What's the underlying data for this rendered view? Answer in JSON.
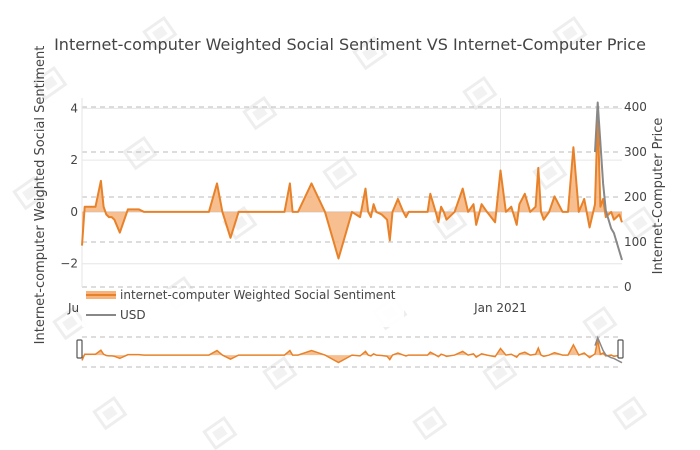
{
  "chart_data": {
    "type": "line",
    "title": "Internet-computer Weighted Social Sentiment VS Internet-Computer Price",
    "ylabel_left": "Internet-computer Weighted Social Sentiment",
    "ylabel_right": "Internet-Computer Price",
    "y_left_ticks": [
      "4",
      "2",
      "0",
      "−2"
    ],
    "y_left_range": [
      -2.9,
      4.4
    ],
    "y_right_ticks": [
      "400",
      "300",
      "200",
      "100",
      "0"
    ],
    "y_right_range": [
      0,
      420
    ],
    "x_ticks": [
      "Ju",
      "Jan 2021"
    ],
    "x_range": [
      0,
      400
    ],
    "x_tick_positions": [
      0,
      310
    ],
    "grid": true,
    "legend_position": "bottom-left",
    "colors": {
      "sentiment": "#e8822a",
      "sentiment_fill": "#f6b47c",
      "price": "#888888",
      "text": "#444444",
      "grid": "#e6e6e6"
    },
    "series": [
      {
        "name": "internet-computer Weighted Social Sentiment",
        "axis": "left",
        "x": [
          0,
          2,
          4,
          10,
          14,
          16,
          18,
          20,
          22,
          24,
          28,
          34,
          40,
          42,
          46,
          52,
          60,
          62,
          64,
          68,
          74,
          80,
          88,
          94,
          100,
          104,
          110,
          116,
          120,
          126,
          130,
          140,
          146,
          150,
          154,
          156,
          160,
          170,
          180,
          190,
          200,
          206,
          210,
          212,
          214,
          216,
          218,
          222,
          226,
          228,
          230,
          234,
          238,
          240,
          242,
          248,
          256,
          258,
          262,
          264,
          266,
          268,
          270,
          276,
          282,
          286,
          290,
          292,
          296,
          300,
          306,
          310,
          314,
          318,
          322,
          324,
          328,
          332,
          336,
          338,
          340,
          342,
          346,
          350,
          356,
          360,
          364,
          368,
          372,
          376,
          380,
          382,
          384,
          386,
          388,
          390,
          392,
          394,
          396,
          398,
          400
        ],
        "y": [
          -1.3,
          0.2,
          0.2,
          0.2,
          1.2,
          0.2,
          -0.1,
          -0.2,
          -0.2,
          -0.3,
          -0.8,
          0.1,
          0.1,
          0.1,
          0,
          0,
          0,
          0,
          0,
          0,
          0,
          0,
          0,
          0,
          1.1,
          0,
          -1.0,
          0,
          0,
          0,
          0,
          0,
          0,
          0,
          1.1,
          0,
          0,
          1.1,
          0,
          -1.8,
          0,
          -0.2,
          0.9,
          0,
          -0.2,
          0.3,
          0,
          -0.1,
          -0.3,
          -1.1,
          0,
          0.5,
          0,
          -0.2,
          0,
          0,
          0,
          0.7,
          0,
          -0.4,
          0.2,
          0,
          -0.3,
          0,
          0.9,
          0,
          0.3,
          -0.5,
          0.3,
          0,
          -0.4,
          1.6,
          0,
          0.2,
          -0.5,
          0.3,
          0.7,
          0,
          0.2,
          1.7,
          0,
          -0.3,
          0,
          0.6,
          0,
          0,
          2.5,
          0,
          0.5,
          -0.6,
          0.3,
          3.7,
          0.2,
          0.5,
          -0.2,
          -0.1,
          0,
          -0.3,
          -0.2,
          -0.1,
          -0.4
        ]
      },
      {
        "name": "USD",
        "axis": "right",
        "x": [
          380,
          382,
          384,
          386,
          388,
          390,
          392,
          394,
          396,
          398,
          400
        ],
        "y": [
          300,
          410,
          320,
          230,
          170,
          150,
          130,
          120,
          100,
          80,
          60
        ]
      }
    ]
  }
}
